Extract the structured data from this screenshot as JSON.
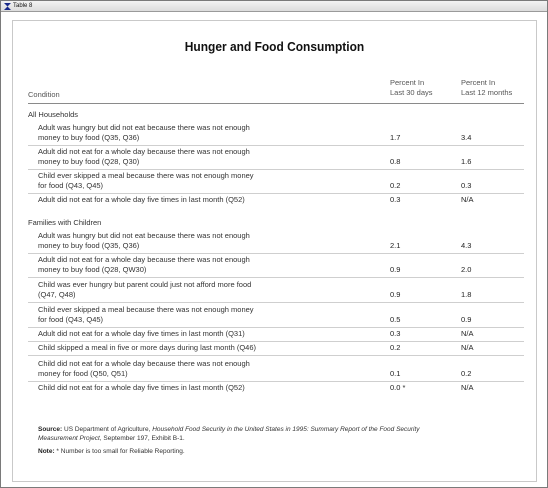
{
  "window": {
    "title": "Table 8"
  },
  "table": {
    "title": "Hunger and Food Consumption",
    "columns": {
      "condition": "Condition",
      "col30": [
        "Percent In",
        "Last 30 days"
      ],
      "col12": [
        "Percent In",
        "Last 12 months"
      ]
    },
    "sections": [
      {
        "name": "All Households",
        "rows": [
          {
            "label": [
              "Adult was hungry but did not eat because there was not enough",
              "money to buy food (Q35, Q36)"
            ],
            "v30": "1.7",
            "v12": "3.4"
          },
          {
            "label": [
              "Adult did not eat for a whole day because there was not enough",
              "money to buy food (Q28, Q30)"
            ],
            "v30": "0.8",
            "v12": "1.6"
          },
          {
            "label": [
              "Child ever skipped a meal because there was not enough money",
              "for food (Q43, Q45)"
            ],
            "v30": "0.2",
            "v12": "0.3"
          },
          {
            "label": [
              "Adult did not eat for a whole day five times in last month (Q52)"
            ],
            "v30": "0.3",
            "v12": "N/A"
          }
        ]
      },
      {
        "name": "Families with Children",
        "rows": [
          {
            "label": [
              "Adult was hungry but did not eat because there was not enough",
              "money to buy food (Q35, Q36)"
            ],
            "v30": "2.1",
            "v12": "4.3"
          },
          {
            "label": [
              "Adult did not eat for a whole day because there was not enough",
              "money to buy food (Q28, QW30)"
            ],
            "v30": "0.9",
            "v12": "2.0"
          },
          {
            "label": [
              "Child was ever hungry but parent could just not afford more food",
              "(Q47, Q48)"
            ],
            "v30": "0.9",
            "v12": "1.8"
          },
          {
            "label": [
              "Child ever skipped a meal because there was not enough money",
              "for food (Q43, Q45)"
            ],
            "v30": "0.5",
            "v12": "0.9"
          },
          {
            "label": [
              "Adult did not eat for a whole day five times in last month (Q31)"
            ],
            "v30": "0.3",
            "v12": "N/A"
          },
          {
            "label": [
              "Child skipped a meal in five or more days during last month (Q46)"
            ],
            "v30": "0.2",
            "v12": "N/A"
          },
          {
            "label": [
              "Child did not eat for a whole day because there was not enough",
              "money for food (Q50, Q51)"
            ],
            "v30": "0.1",
            "v12": "0.2"
          },
          {
            "label": [
              "Child did not eat for a whole day five times in last month (Q52)"
            ],
            "v30": "0.0 *",
            "v12": "N/A"
          }
        ]
      }
    ]
  },
  "footnotes": {
    "source_label": "Source:",
    "source_pre": "US Department of Agriculture,",
    "source_title": "Household Food Security in the United States in 1995: Summary Report of the Food Security Measurement Project",
    "source_post": ", September 197, Exhibit B-1.",
    "note_label": "Note:",
    "note_text": "* Number is too small for Reliable Reporting."
  }
}
